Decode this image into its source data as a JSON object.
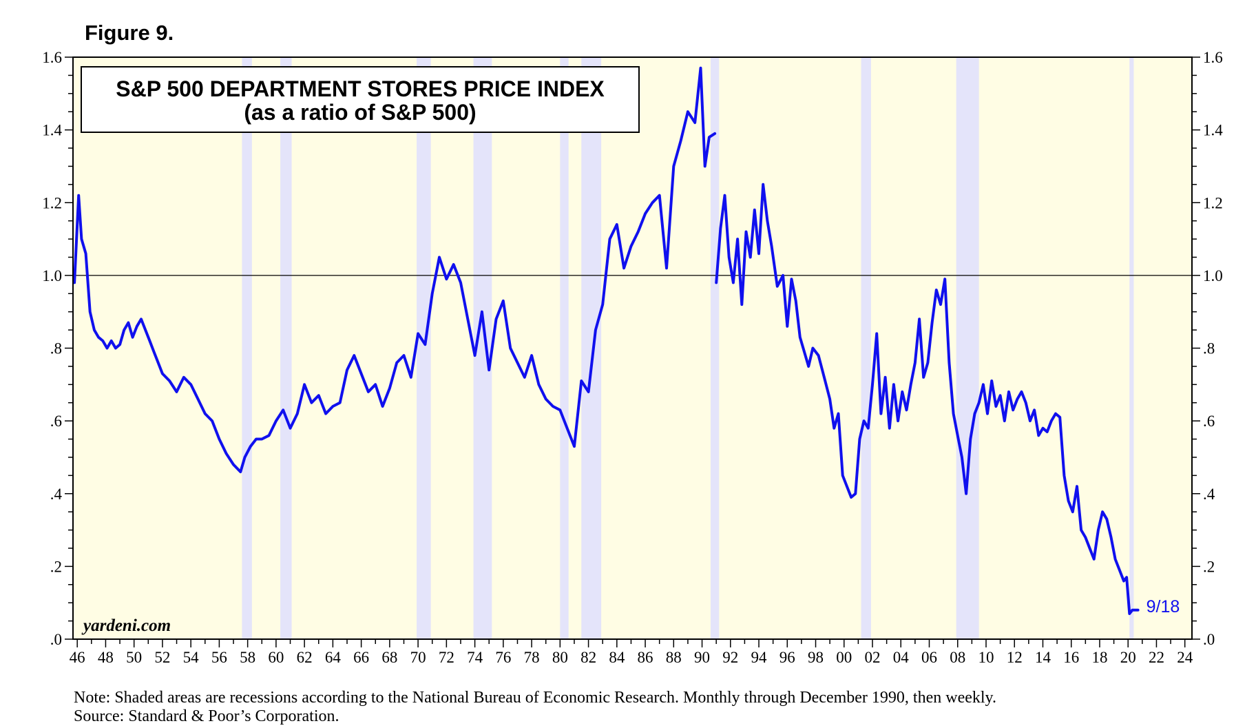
{
  "figure_label": "Figure 9.",
  "note": "Note: Shaded areas are recessions according to the National Bureau of Economic Research. Monthly through December 1990, then weekly.",
  "source": "Source: Standard & Poor’s Corporation.",
  "watermark": "yardeni.com",
  "colors": {
    "line": "#1010ee",
    "plot_background": "#fffde4",
    "recession": "#e4e4fa",
    "reference_line": "#000000",
    "last_label": "#1010ee"
  },
  "chart_data": {
    "type": "line",
    "title": "S&P 500 DEPARTMENT STORES PRICE INDEX",
    "subtitle": "(as a ratio of S&P 500)",
    "xlabel": "",
    "ylabel": "",
    "xlim": [
      1945.7,
      2024.5
    ],
    "ylim": [
      0,
      1.6
    ],
    "y_ticks": [
      0,
      0.2,
      0.4,
      0.6,
      0.8,
      1.0,
      1.2,
      1.4,
      1.6
    ],
    "y_tick_labels": [
      ".0",
      ".2",
      ".4",
      ".6",
      ".8",
      "1.0",
      "1.2",
      "1.4",
      "1.6"
    ],
    "x_ticks": [
      1946,
      1948,
      1950,
      1952,
      1954,
      1956,
      1958,
      1960,
      1962,
      1964,
      1966,
      1968,
      1970,
      1972,
      1974,
      1976,
      1978,
      1980,
      1982,
      1984,
      1986,
      1988,
      1990,
      1992,
      1994,
      1996,
      1998,
      2000,
      2002,
      2004,
      2006,
      2008,
      2010,
      2012,
      2014,
      2016,
      2018,
      2020,
      2022,
      2024
    ],
    "x_tick_labels": [
      "46",
      "48",
      "50",
      "52",
      "54",
      "56",
      "58",
      "60",
      "62",
      "64",
      "66",
      "68",
      "70",
      "72",
      "74",
      "76",
      "78",
      "80",
      "82",
      "84",
      "86",
      "88",
      "90",
      "92",
      "94",
      "96",
      "98",
      "00",
      "02",
      "04",
      "06",
      "08",
      "10",
      "12",
      "14",
      "16",
      "18",
      "20",
      "22",
      "24"
    ],
    "reference_line": 1.0,
    "grid": false,
    "recessions": [
      [
        1957.6,
        1958.3
      ],
      [
        1960.3,
        1961.1
      ],
      [
        1969.9,
        1970.9
      ],
      [
        1973.9,
        1975.2
      ],
      [
        1980.0,
        1980.6
      ],
      [
        1981.5,
        1982.9
      ],
      [
        1990.6,
        1991.2
      ],
      [
        2001.2,
        2001.9
      ],
      [
        2007.9,
        2009.5
      ],
      [
        2020.1,
        2020.4
      ]
    ],
    "gap_after_year": 1990.9,
    "last_value_label": "9/18",
    "series": [
      {
        "name": "S&P 500 Department Stores / S&P 500",
        "x": [
          1945.8,
          1946.1,
          1946.3,
          1946.6,
          1946.9,
          1947.2,
          1947.5,
          1947.8,
          1948.1,
          1948.4,
          1948.7,
          1949.0,
          1949.3,
          1949.6,
          1949.9,
          1950.2,
          1950.5,
          1950.8,
          1951.1,
          1951.4,
          1951.7,
          1952.0,
          1952.5,
          1953.0,
          1953.5,
          1954.0,
          1954.5,
          1955.0,
          1955.5,
          1956.0,
          1956.5,
          1957.0,
          1957.5,
          1957.8,
          1958.2,
          1958.6,
          1959.0,
          1959.5,
          1960.0,
          1960.5,
          1961.0,
          1961.5,
          1962.0,
          1962.5,
          1963.0,
          1963.5,
          1964.0,
          1964.5,
          1965.0,
          1965.5,
          1966.0,
          1966.5,
          1967.0,
          1967.5,
          1968.0,
          1968.5,
          1969.0,
          1969.5,
          1970.0,
          1970.5,
          1971.0,
          1971.5,
          1972.0,
          1972.5,
          1973.0,
          1973.5,
          1974.0,
          1974.5,
          1975.0,
          1975.5,
          1976.0,
          1976.5,
          1977.0,
          1977.5,
          1978.0,
          1978.5,
          1979.0,
          1979.5,
          1980.0,
          1980.5,
          1981.0,
          1981.5,
          1982.0,
          1982.5,
          1983.0,
          1983.5,
          1984.0,
          1984.5,
          1985.0,
          1985.5,
          1986.0,
          1986.5,
          1987.0,
          1987.5,
          1988.0,
          1988.5,
          1989.0,
          1989.5,
          1989.9,
          1990.2,
          1990.5,
          1990.9
        ],
        "values": [
          0.98,
          1.22,
          1.1,
          1.06,
          0.9,
          0.85,
          0.83,
          0.82,
          0.8,
          0.82,
          0.8,
          0.81,
          0.85,
          0.87,
          0.83,
          0.86,
          0.88,
          0.85,
          0.82,
          0.79,
          0.76,
          0.73,
          0.71,
          0.68,
          0.72,
          0.7,
          0.66,
          0.62,
          0.6,
          0.55,
          0.51,
          0.48,
          0.46,
          0.5,
          0.53,
          0.55,
          0.55,
          0.56,
          0.6,
          0.63,
          0.58,
          0.62,
          0.7,
          0.65,
          0.67,
          0.62,
          0.64,
          0.65,
          0.74,
          0.78,
          0.73,
          0.68,
          0.7,
          0.64,
          0.69,
          0.76,
          0.78,
          0.72,
          0.84,
          0.81,
          0.95,
          1.05,
          0.99,
          1.03,
          0.98,
          0.88,
          0.78,
          0.9,
          0.74,
          0.88,
          0.93,
          0.8,
          0.76,
          0.72,
          0.78,
          0.7,
          0.66,
          0.64,
          0.63,
          0.58,
          0.53,
          0.71,
          0.68,
          0.85,
          0.92,
          1.1,
          1.14,
          1.02,
          1.08,
          1.12,
          1.17,
          1.2,
          1.22,
          1.02,
          1.3,
          1.37,
          1.45,
          1.42,
          1.57,
          1.3,
          1.38,
          1.39
        ]
      },
      {
        "name": "S&P 500 Department Stores / S&P 500 (weekly)",
        "x": [
          1991.0,
          1991.3,
          1991.6,
          1991.9,
          1992.2,
          1992.5,
          1992.8,
          1993.1,
          1993.4,
          1993.7,
          1994.0,
          1994.3,
          1994.6,
          1994.9,
          1995.3,
          1995.7,
          1996.0,
          1996.3,
          1996.6,
          1996.9,
          1997.2,
          1997.5,
          1997.8,
          1998.2,
          1998.6,
          1999.0,
          1999.3,
          1999.6,
          1999.9,
          2000.2,
          2000.5,
          2000.8,
          2001.1,
          2001.4,
          2001.7,
          2002.0,
          2002.3,
          2002.6,
          2002.9,
          2003.2,
          2003.5,
          2003.8,
          2004.1,
          2004.4,
          2004.7,
          2005.0,
          2005.3,
          2005.6,
          2005.9,
          2006.2,
          2006.5,
          2006.8,
          2007.1,
          2007.4,
          2007.7,
          2008.0,
          2008.3,
          2008.6,
          2008.9,
          2009.2,
          2009.5,
          2009.8,
          2010.1,
          2010.4,
          2010.7,
          2011.0,
          2011.3,
          2011.6,
          2011.9,
          2012.2,
          2012.5,
          2012.8,
          2013.1,
          2013.4,
          2013.7,
          2014.0,
          2014.3,
          2014.6,
          2014.9,
          2015.2,
          2015.5,
          2015.8,
          2016.1,
          2016.4,
          2016.7,
          2017.0,
          2017.3,
          2017.6,
          2017.9,
          2018.2,
          2018.5,
          2018.8,
          2019.1,
          2019.4,
          2019.7,
          2019.9,
          2020.1,
          2020.3,
          2020.5,
          2020.7
        ],
        "values": [
          0.98,
          1.13,
          1.22,
          1.05,
          0.98,
          1.1,
          0.92,
          1.12,
          1.05,
          1.18,
          1.06,
          1.25,
          1.15,
          1.08,
          0.97,
          1.0,
          0.86,
          0.99,
          0.93,
          0.83,
          0.79,
          0.75,
          0.8,
          0.78,
          0.72,
          0.66,
          0.58,
          0.62,
          0.45,
          0.42,
          0.39,
          0.4,
          0.55,
          0.6,
          0.58,
          0.7,
          0.84,
          0.62,
          0.72,
          0.58,
          0.7,
          0.6,
          0.68,
          0.63,
          0.7,
          0.76,
          0.88,
          0.72,
          0.76,
          0.87,
          0.96,
          0.92,
          0.99,
          0.76,
          0.62,
          0.56,
          0.5,
          0.4,
          0.55,
          0.62,
          0.65,
          0.7,
          0.62,
          0.71,
          0.64,
          0.67,
          0.6,
          0.68,
          0.63,
          0.66,
          0.68,
          0.65,
          0.6,
          0.63,
          0.56,
          0.58,
          0.57,
          0.6,
          0.62,
          0.61,
          0.45,
          0.38,
          0.35,
          0.42,
          0.3,
          0.28,
          0.25,
          0.22,
          0.3,
          0.35,
          0.33,
          0.28,
          0.22,
          0.19,
          0.16,
          0.17,
          0.07,
          0.08,
          0.08,
          0.08
        ]
      }
    ]
  }
}
